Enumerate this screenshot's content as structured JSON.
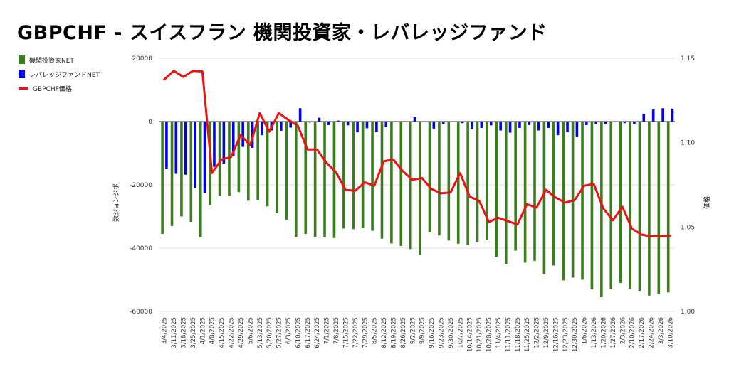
{
  "chart_data": {
    "type": "bar",
    "title": "GBPCHF - スイスフラン 機関投資家・レバレッジファンド",
    "ylabel": "数ジョンジポ",
    "y2label": "価格",
    "ylim": [
      -60000,
      20000
    ],
    "y2lim": [
      1.0,
      1.15
    ],
    "yticks": [
      "20000",
      "0",
      "-20000",
      "-40000",
      "-60000"
    ],
    "y2ticks": [
      "1.15",
      "1.10",
      "1.05",
      "1.00"
    ],
    "legend_position": "left",
    "categories": [
      "3/4/2025",
      "3/11/2025",
      "3/18/2025",
      "3/25/2025",
      "4/1/2025",
      "4/8/2025",
      "4/15/2025",
      "4/22/2025",
      "4/29/2025",
      "5/6/2025",
      "5/13/2025",
      "5/20/2025",
      "5/27/2025",
      "6/3/2025",
      "6/10/2025",
      "6/17/2025",
      "6/24/2025",
      "7/1/2025",
      "7/8/2025",
      "7/15/2025",
      "7/22/2025",
      "7/29/2025",
      "8/5/2025",
      "8/12/2025",
      "8/19/2025",
      "8/26/2025",
      "9/2/2025",
      "9/9/2025",
      "9/16/2025",
      "9/23/2025",
      "9/30/2025",
      "10/7/2025",
      "10/14/2025",
      "10/21/2025",
      "10/28/2025",
      "11/4/2025",
      "11/11/2025",
      "11/18/2025",
      "11/25/2025",
      "12/2/2025",
      "12/9/2025",
      "12/16/2025",
      "12/23/2025",
      "12/30/2025",
      "1/6/2026",
      "1/13/2026",
      "1/20/2026",
      "1/27/2026",
      "2/3/2026",
      "2/10/2026",
      "2/17/2026",
      "2/24/2026",
      "3/3/2026",
      "3/10/2026"
    ],
    "series": [
      {
        "name": "機関投資家NET",
        "axis": "left",
        "kind": "bar",
        "color": "#3a7d1e",
        "values": [
          -35500,
          -33000,
          -30000,
          -31700,
          -36500,
          -26500,
          -23500,
          -23600,
          -22300,
          -25000,
          -24800,
          -26800,
          -29000,
          -31000,
          -36500,
          -35500,
          -36500,
          -36600,
          -36800,
          -33800,
          -34000,
          -33700,
          -34500,
          -37000,
          -38500,
          -39300,
          -40300,
          -42200,
          -35000,
          -36000,
          -37600,
          -38600,
          -39000,
          -38000,
          -37500,
          -42700,
          -45000,
          -40800,
          -44600,
          -44000,
          -48200,
          -45500,
          -50200,
          -49300,
          -50000,
          -53000,
          -55500,
          -53000,
          -51000,
          -52800,
          -53500,
          -55000,
          -54500,
          -54000
        ]
      },
      {
        "name": "レバレッジファンドNET",
        "axis": "left",
        "kind": "bar",
        "color": "#0000ee",
        "values": [
          -15000,
          -16500,
          -16800,
          -21000,
          -22700,
          -14300,
          -13300,
          -11000,
          -8000,
          -8300,
          -4300,
          -2800,
          -2900,
          -1900,
          4200,
          -300,
          1200,
          -1100,
          300,
          -1200,
          -3400,
          -2100,
          -3300,
          -1800,
          -200,
          0,
          1400,
          -200,
          -2200,
          -700,
          -100,
          -500,
          -2300,
          -2000,
          -1200,
          -2800,
          -3500,
          -2000,
          -1100,
          -2800,
          -2000,
          -4300,
          -3300,
          -4700,
          -1100,
          -800,
          -700,
          -200,
          -500,
          -700,
          2500,
          3800,
          4200,
          4100
        ]
      },
      {
        "name": "GBPCHF価格",
        "axis": "right",
        "kind": "line",
        "color": "#ee1111",
        "values": [
          1.1375,
          1.1425,
          1.139,
          1.1425,
          1.1422,
          1.082,
          1.09,
          1.0915,
          1.1045,
          1.0985,
          1.1175,
          1.1065,
          1.1175,
          1.1135,
          1.11,
          1.096,
          1.096,
          1.088,
          1.0825,
          1.072,
          1.0715,
          1.0765,
          1.0745,
          1.089,
          1.09,
          1.083,
          1.078,
          1.079,
          1.0725,
          1.07,
          1.0705,
          1.082,
          1.068,
          1.0655,
          1.053,
          1.0555,
          1.0535,
          1.0515,
          1.0635,
          1.0615,
          1.072,
          1.0675,
          1.0645,
          1.066,
          1.0745,
          1.0755,
          1.061,
          1.054,
          1.062,
          1.049,
          1.0455,
          1.0445,
          1.0445,
          1.045
        ]
      }
    ]
  }
}
